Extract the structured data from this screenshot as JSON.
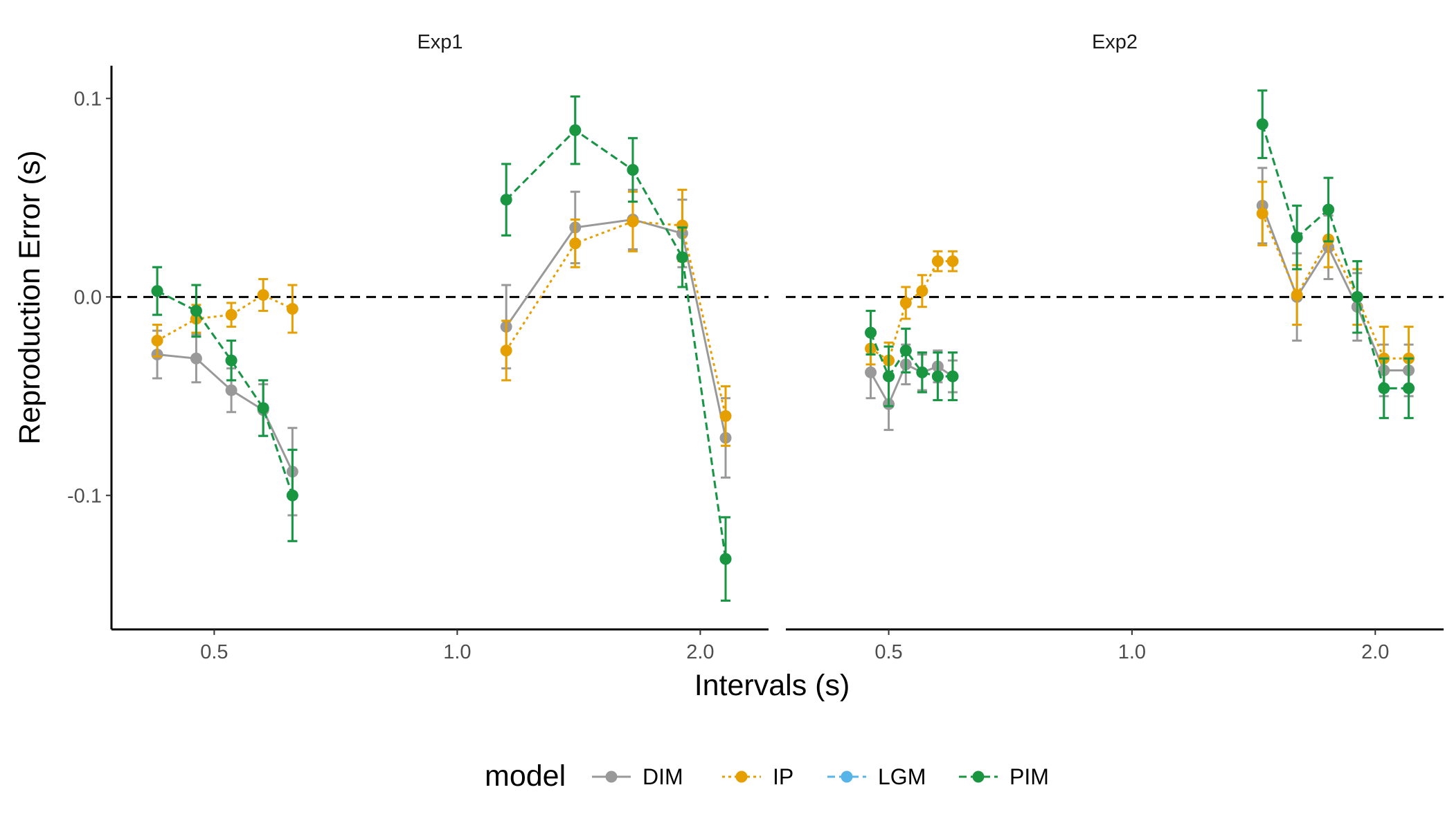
{
  "chart_data": {
    "type": "line",
    "facets": [
      {
        "label": "Exp1",
        "series": [
          {
            "name": "DIM",
            "x": [
              0.425,
              0.475,
              0.525,
              0.575,
              0.625
            ],
            "y": [
              -0.029,
              -0.031,
              -0.047,
              -0.057,
              -0.088
            ],
            "err": [
              0.012,
              0.012,
              0.011,
              0.013,
              0.022
            ]
          },
          {
            "name": "IP",
            "x": [
              0.425,
              0.475,
              0.525,
              0.575,
              0.625
            ],
            "y": [
              -0.022,
              -0.011,
              -0.009,
              0.001,
              -0.006
            ],
            "err": [
              0.008,
              0.007,
              0.006,
              0.008,
              0.012
            ]
          },
          {
            "name": "LGM",
            "x": [
              0.425,
              0.475,
              0.525,
              0.575,
              0.625
            ],
            "y": [
              0.003,
              -0.007,
              -0.032,
              -0.056,
              -0.1
            ],
            "err": [
              0.012,
              0.013,
              0.01,
              0.014,
              0.023
            ]
          },
          {
            "name": "PIM",
            "x": [
              0.425,
              0.475,
              0.525,
              0.575,
              0.625
            ],
            "y": [
              0.003,
              -0.007,
              -0.032,
              -0.056,
              -0.1
            ],
            "err": [
              0.012,
              0.013,
              0.01,
              0.014,
              0.023
            ]
          },
          {
            "name": "DIM",
            "x": [
              1.15,
              1.4,
              1.65,
              1.9,
              2.15
            ],
            "y": [
              -0.015,
              0.035,
              0.039,
              0.032,
              -0.071
            ],
            "err": [
              0.021,
              0.018,
              0.015,
              0.017,
              0.02
            ]
          },
          {
            "name": "IP",
            "x": [
              1.15,
              1.4,
              1.65,
              1.9,
              2.15
            ],
            "y": [
              -0.027,
              0.027,
              0.038,
              0.036,
              -0.06
            ],
            "err": [
              0.015,
              0.012,
              0.015,
              0.018,
              0.015
            ]
          },
          {
            "name": "LGM",
            "x": [
              1.15,
              1.4,
              1.65,
              1.9,
              2.15
            ],
            "y": [
              0.049,
              0.084,
              0.064,
              0.02,
              -0.132
            ],
            "err": [
              0.018,
              0.017,
              0.016,
              0.015,
              0.021
            ]
          },
          {
            "name": "PIM",
            "x": [
              1.15,
              1.4,
              1.65,
              1.9,
              2.15
            ],
            "y": [
              0.049,
              0.084,
              0.064,
              0.02,
              -0.132
            ],
            "err": [
              0.018,
              0.017,
              0.016,
              0.015,
              0.021
            ]
          }
        ]
      },
      {
        "label": "Exp2",
        "series": [
          {
            "name": "DIM",
            "x": [
              0.475,
              0.5,
              0.525,
              0.55,
              0.575,
              0.6
            ],
            "y": [
              -0.038,
              -0.054,
              -0.034,
              -0.038,
              -0.035,
              -0.04
            ],
            "err": [
              0.013,
              0.013,
              0.01,
              0.009,
              0.008,
              0.008
            ]
          },
          {
            "name": "IP",
            "x": [
              0.475,
              0.5,
              0.525,
              0.55,
              0.575,
              0.6
            ],
            "y": [
              -0.026,
              -0.032,
              -0.003,
              0.003,
              0.018,
              0.018
            ],
            "err": [
              0.008,
              0.009,
              0.008,
              0.008,
              0.005,
              0.005
            ]
          },
          {
            "name": "LGM",
            "x": [
              0.475,
              0.5,
              0.525,
              0.55,
              0.575,
              0.6
            ],
            "y": [
              -0.018,
              -0.04,
              -0.027,
              -0.038,
              -0.04,
              -0.04
            ],
            "err": [
              0.011,
              0.015,
              0.011,
              0.01,
              0.012,
              0.012
            ]
          },
          {
            "name": "PIM",
            "x": [
              0.475,
              0.5,
              0.525,
              0.55,
              0.575,
              0.6
            ],
            "y": [
              -0.018,
              -0.04,
              -0.027,
              -0.038,
              -0.04,
              -0.04
            ],
            "err": [
              0.011,
              0.015,
              0.011,
              0.01,
              0.012,
              0.012
            ]
          },
          {
            "name": "DIM",
            "x": [
              1.45,
              1.6,
              1.75,
              1.9,
              2.05,
              2.2
            ],
            "y": [
              0.046,
              0.0,
              0.025,
              -0.005,
              -0.037,
              -0.037
            ],
            "err": [
              0.019,
              0.022,
              0.016,
              0.017,
              0.013,
              0.013
            ]
          },
          {
            "name": "IP",
            "x": [
              1.45,
              1.6,
              1.75,
              1.9,
              2.05,
              2.2
            ],
            "y": [
              0.042,
              0.001,
              0.029,
              0.0,
              -0.031,
              -0.031
            ],
            "err": [
              0.016,
              0.015,
              0.014,
              0.014,
              0.016,
              0.016
            ]
          },
          {
            "name": "LGM",
            "x": [
              1.45,
              1.6,
              1.75,
              1.9,
              2.05,
              2.2
            ],
            "y": [
              0.087,
              0.03,
              0.044,
              0.0,
              -0.046,
              -0.046
            ],
            "err": [
              0.017,
              0.016,
              0.016,
              0.018,
              0.015,
              0.015
            ]
          },
          {
            "name": "PIM",
            "x": [
              1.45,
              1.6,
              1.75,
              1.9,
              2.05,
              2.2
            ],
            "y": [
              0.087,
              0.03,
              0.044,
              0.0,
              -0.046,
              -0.046
            ],
            "err": [
              0.017,
              0.016,
              0.016,
              0.018,
              0.015,
              0.015
            ]
          }
        ]
      }
    ],
    "xlabel": "Intervals (s)",
    "ylabel": "Reproduction Error (s)",
    "x_scale": "log",
    "xlim": [
      0.373,
      2.43
    ],
    "ylim": [
      -0.1675,
      0.1165
    ],
    "xticks": [
      "0.5",
      "1.0",
      "2.0"
    ],
    "yticks": [
      "-0.1",
      "0.0",
      "0.1"
    ],
    "reference_line_y": 0.0,
    "grid": false,
    "legend": {
      "title": "model",
      "position": "bottom",
      "entries": [
        "DIM",
        "IP",
        "LGM",
        "PIM"
      ]
    },
    "colors": {
      "DIM": "#999999",
      "IP": "#E69F00",
      "LGM": "#56B4E9",
      "PIM": "#1A9641"
    },
    "linetypes": {
      "DIM": "solid",
      "IP": "dotted",
      "LGM": "dashed",
      "PIM": "dashed"
    }
  }
}
